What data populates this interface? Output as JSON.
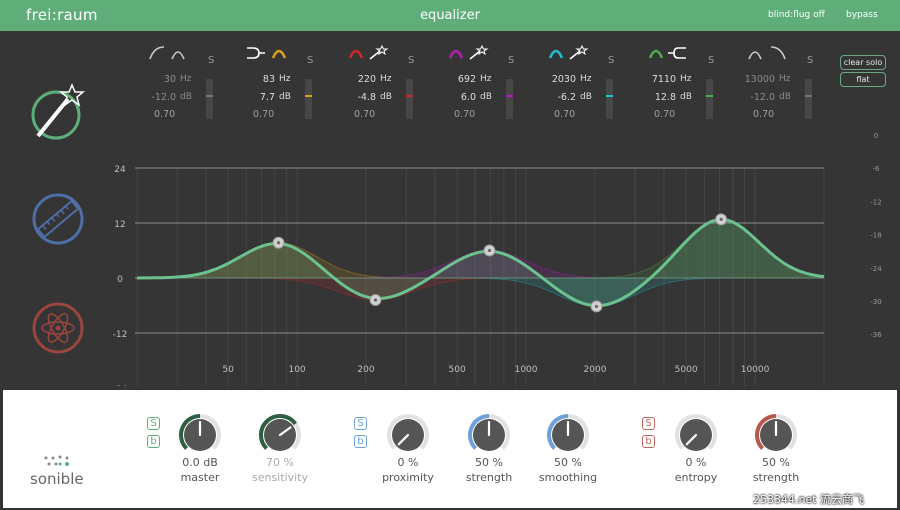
{
  "app": {
    "brand": "frei:raum",
    "title": "equalizer",
    "blind_label": "blind:flug off",
    "bypass_label": "bypass"
  },
  "side_buttons": {
    "clear_solo": "clear solo",
    "flat": "flat"
  },
  "bands": [
    {
      "freq": "30",
      "gain": "-12.0",
      "q": "0.70",
      "color": "#cccccc",
      "solo": "S",
      "dim": true
    },
    {
      "freq": "83",
      "gain": "7.7",
      "q": "0.70",
      "color": "#d9a21b",
      "solo": "S",
      "dim": false
    },
    {
      "freq": "220",
      "gain": "-4.8",
      "q": "0.70",
      "color": "#cc2a2a",
      "solo": "S",
      "dim": false
    },
    {
      "freq": "692",
      "gain": "6.0",
      "q": "0.70",
      "color": "#b21fb8",
      "solo": "S",
      "dim": false
    },
    {
      "freq": "2030",
      "gain": "-6.2",
      "q": "0.70",
      "color": "#1fbfc9",
      "solo": "S",
      "dim": false
    },
    {
      "freq": "7110",
      "gain": "12.8",
      "q": "0.70",
      "color": "#4fa84a",
      "solo": "S",
      "dim": false
    },
    {
      "freq": "13000",
      "gain": "-12.0",
      "q": "0.70",
      "color": "#cccccc",
      "solo": "S",
      "dim": true
    }
  ],
  "units": {
    "hz": "Hz",
    "db": "dB"
  },
  "graph": {
    "left_ticks": [
      "24",
      "12",
      "0",
      "-12",
      "-24"
    ],
    "right_ticks": [
      "0",
      "-6",
      "-12",
      "-18",
      "-24",
      "-30",
      "-36"
    ],
    "freq_ticks": [
      "50",
      "100",
      "200",
      "500",
      "1000",
      "2000",
      "5000",
      "10000"
    ]
  },
  "bottom": {
    "logo": "sonible",
    "group_green": {
      "s": "S",
      "b": "b",
      "knobs": [
        {
          "value": "0.0 dB",
          "label": "master",
          "level": 0.5
        },
        {
          "value": "70 %",
          "label": "sensitivity",
          "level": 0.7
        }
      ]
    },
    "group_blue": {
      "s": "S",
      "b": "b",
      "knobs": [
        {
          "value": "0 %",
          "label": "proximity",
          "level": 0.0
        },
        {
          "value": "50 %",
          "label": "strength",
          "level": 0.5
        },
        {
          "value": "50 %",
          "label": "smoothing",
          "level": 0.5
        }
      ]
    },
    "group_red": {
      "s": "S",
      "b": "b",
      "knobs": [
        {
          "value": "0 %",
          "label": "entropy",
          "level": 0.0
        },
        {
          "value": "50 %",
          "label": "strength",
          "level": 0.5
        }
      ]
    }
  },
  "watermark": "253344.net 流云商飞",
  "colors": {
    "accent": "#5fae7a",
    "curve": "#6cc28f",
    "background": "#353535"
  }
}
